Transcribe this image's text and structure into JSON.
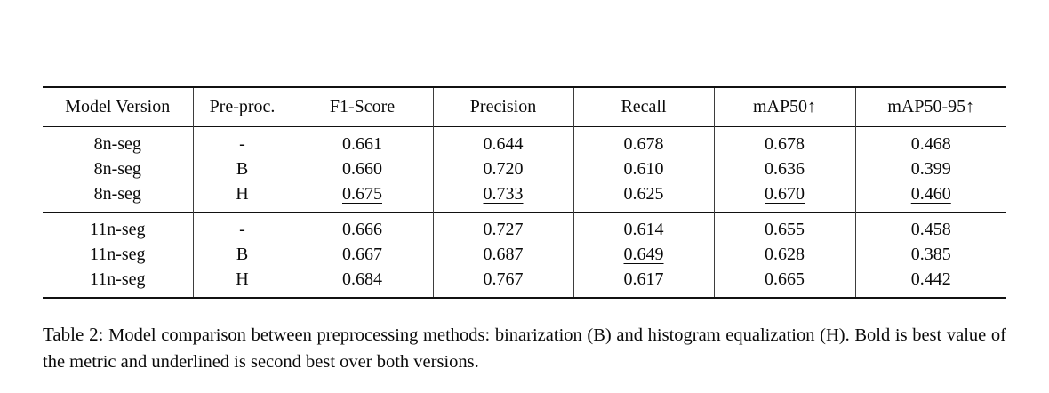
{
  "table": {
    "columns": [
      {
        "label": "Model Version"
      },
      {
        "label": "Pre-proc."
      },
      {
        "label": "F1-Score"
      },
      {
        "label": "Precision"
      },
      {
        "label": "Recall"
      },
      {
        "label": "mAP50↑"
      },
      {
        "label": "mAP50-95↑"
      }
    ],
    "groups": [
      {
        "rows": [
          {
            "cells": [
              {
                "v": "8n-seg"
              },
              {
                "v": "-"
              },
              {
                "v": "0.661"
              },
              {
                "v": "0.644"
              },
              {
                "v": "0.678",
                "s": "bold"
              },
              {
                "v": "0.678",
                "s": "bold"
              },
              {
                "v": "0.468",
                "s": "bold"
              }
            ]
          },
          {
            "cells": [
              {
                "v": "8n-seg"
              },
              {
                "v": "B"
              },
              {
                "v": "0.660"
              },
              {
                "v": "0.720"
              },
              {
                "v": "0.610"
              },
              {
                "v": "0.636"
              },
              {
                "v": "0.399"
              }
            ]
          },
          {
            "cells": [
              {
                "v": "8n-seg"
              },
              {
                "v": "H"
              },
              {
                "v": "0.675",
                "s": "underline"
              },
              {
                "v": "0.733",
                "s": "underline"
              },
              {
                "v": "0.625"
              },
              {
                "v": "0.670",
                "s": "underline"
              },
              {
                "v": "0.460",
                "s": "underline"
              }
            ]
          }
        ]
      },
      {
        "rows": [
          {
            "cells": [
              {
                "v": "11n-seg"
              },
              {
                "v": "-"
              },
              {
                "v": "0.666"
              },
              {
                "v": "0.727"
              },
              {
                "v": "0.614"
              },
              {
                "v": "0.655"
              },
              {
                "v": "0.458"
              }
            ]
          },
          {
            "cells": [
              {
                "v": "11n-seg"
              },
              {
                "v": "B"
              },
              {
                "v": "0.667"
              },
              {
                "v": "0.687"
              },
              {
                "v": "0.649",
                "s": "underline"
              },
              {
                "v": "0.628"
              },
              {
                "v": "0.385"
              }
            ]
          },
          {
            "cells": [
              {
                "v": "11n-seg"
              },
              {
                "v": "H"
              },
              {
                "v": "0.684",
                "s": "bold"
              },
              {
                "v": "0.767",
                "s": "bold"
              },
              {
                "v": "0.617"
              },
              {
                "v": "0.665"
              },
              {
                "v": "0.442"
              }
            ]
          }
        ]
      }
    ]
  },
  "caption": {
    "label": "Table 2:",
    "text": "Model comparison between preprocessing methods: binarization (B) and histogram equalization (H). Bold is best value of the metric and underlined is second best over both versions."
  },
  "colors": {
    "background": "#ffffff",
    "text": "#0a0a0a",
    "rule": "#111111",
    "separator": "#3d3d3d"
  }
}
